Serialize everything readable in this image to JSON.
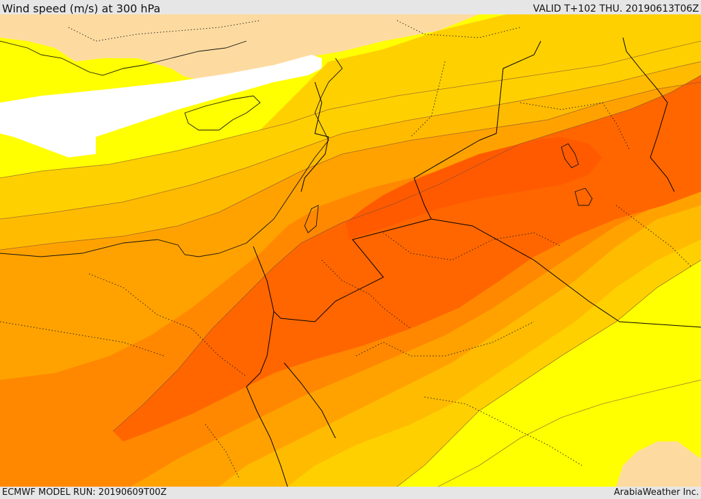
{
  "header": {
    "title": "Wind speed (m/s) at 300 hPa",
    "valid": "VALID T+102 THU. 20190613T06Z"
  },
  "footer": {
    "model_run": "ECMWF MODEL RUN: 20190609T00Z",
    "credit": "ArabiaWeather Inc."
  },
  "map": {
    "field": "wind speed",
    "level": "300 hPa",
    "units": "m/s",
    "palette": {
      "land": "#fddba0",
      "calm": "#ffffff",
      "yellow": "#ffff00",
      "light_orange": "#ffd000",
      "gold": "#ffbb00",
      "orange": "#ffa200",
      "dark_orange": "#ff8800",
      "deep_orange": "#ff6600",
      "red_orange": "#ff5a00",
      "border": "#000000"
    }
  }
}
